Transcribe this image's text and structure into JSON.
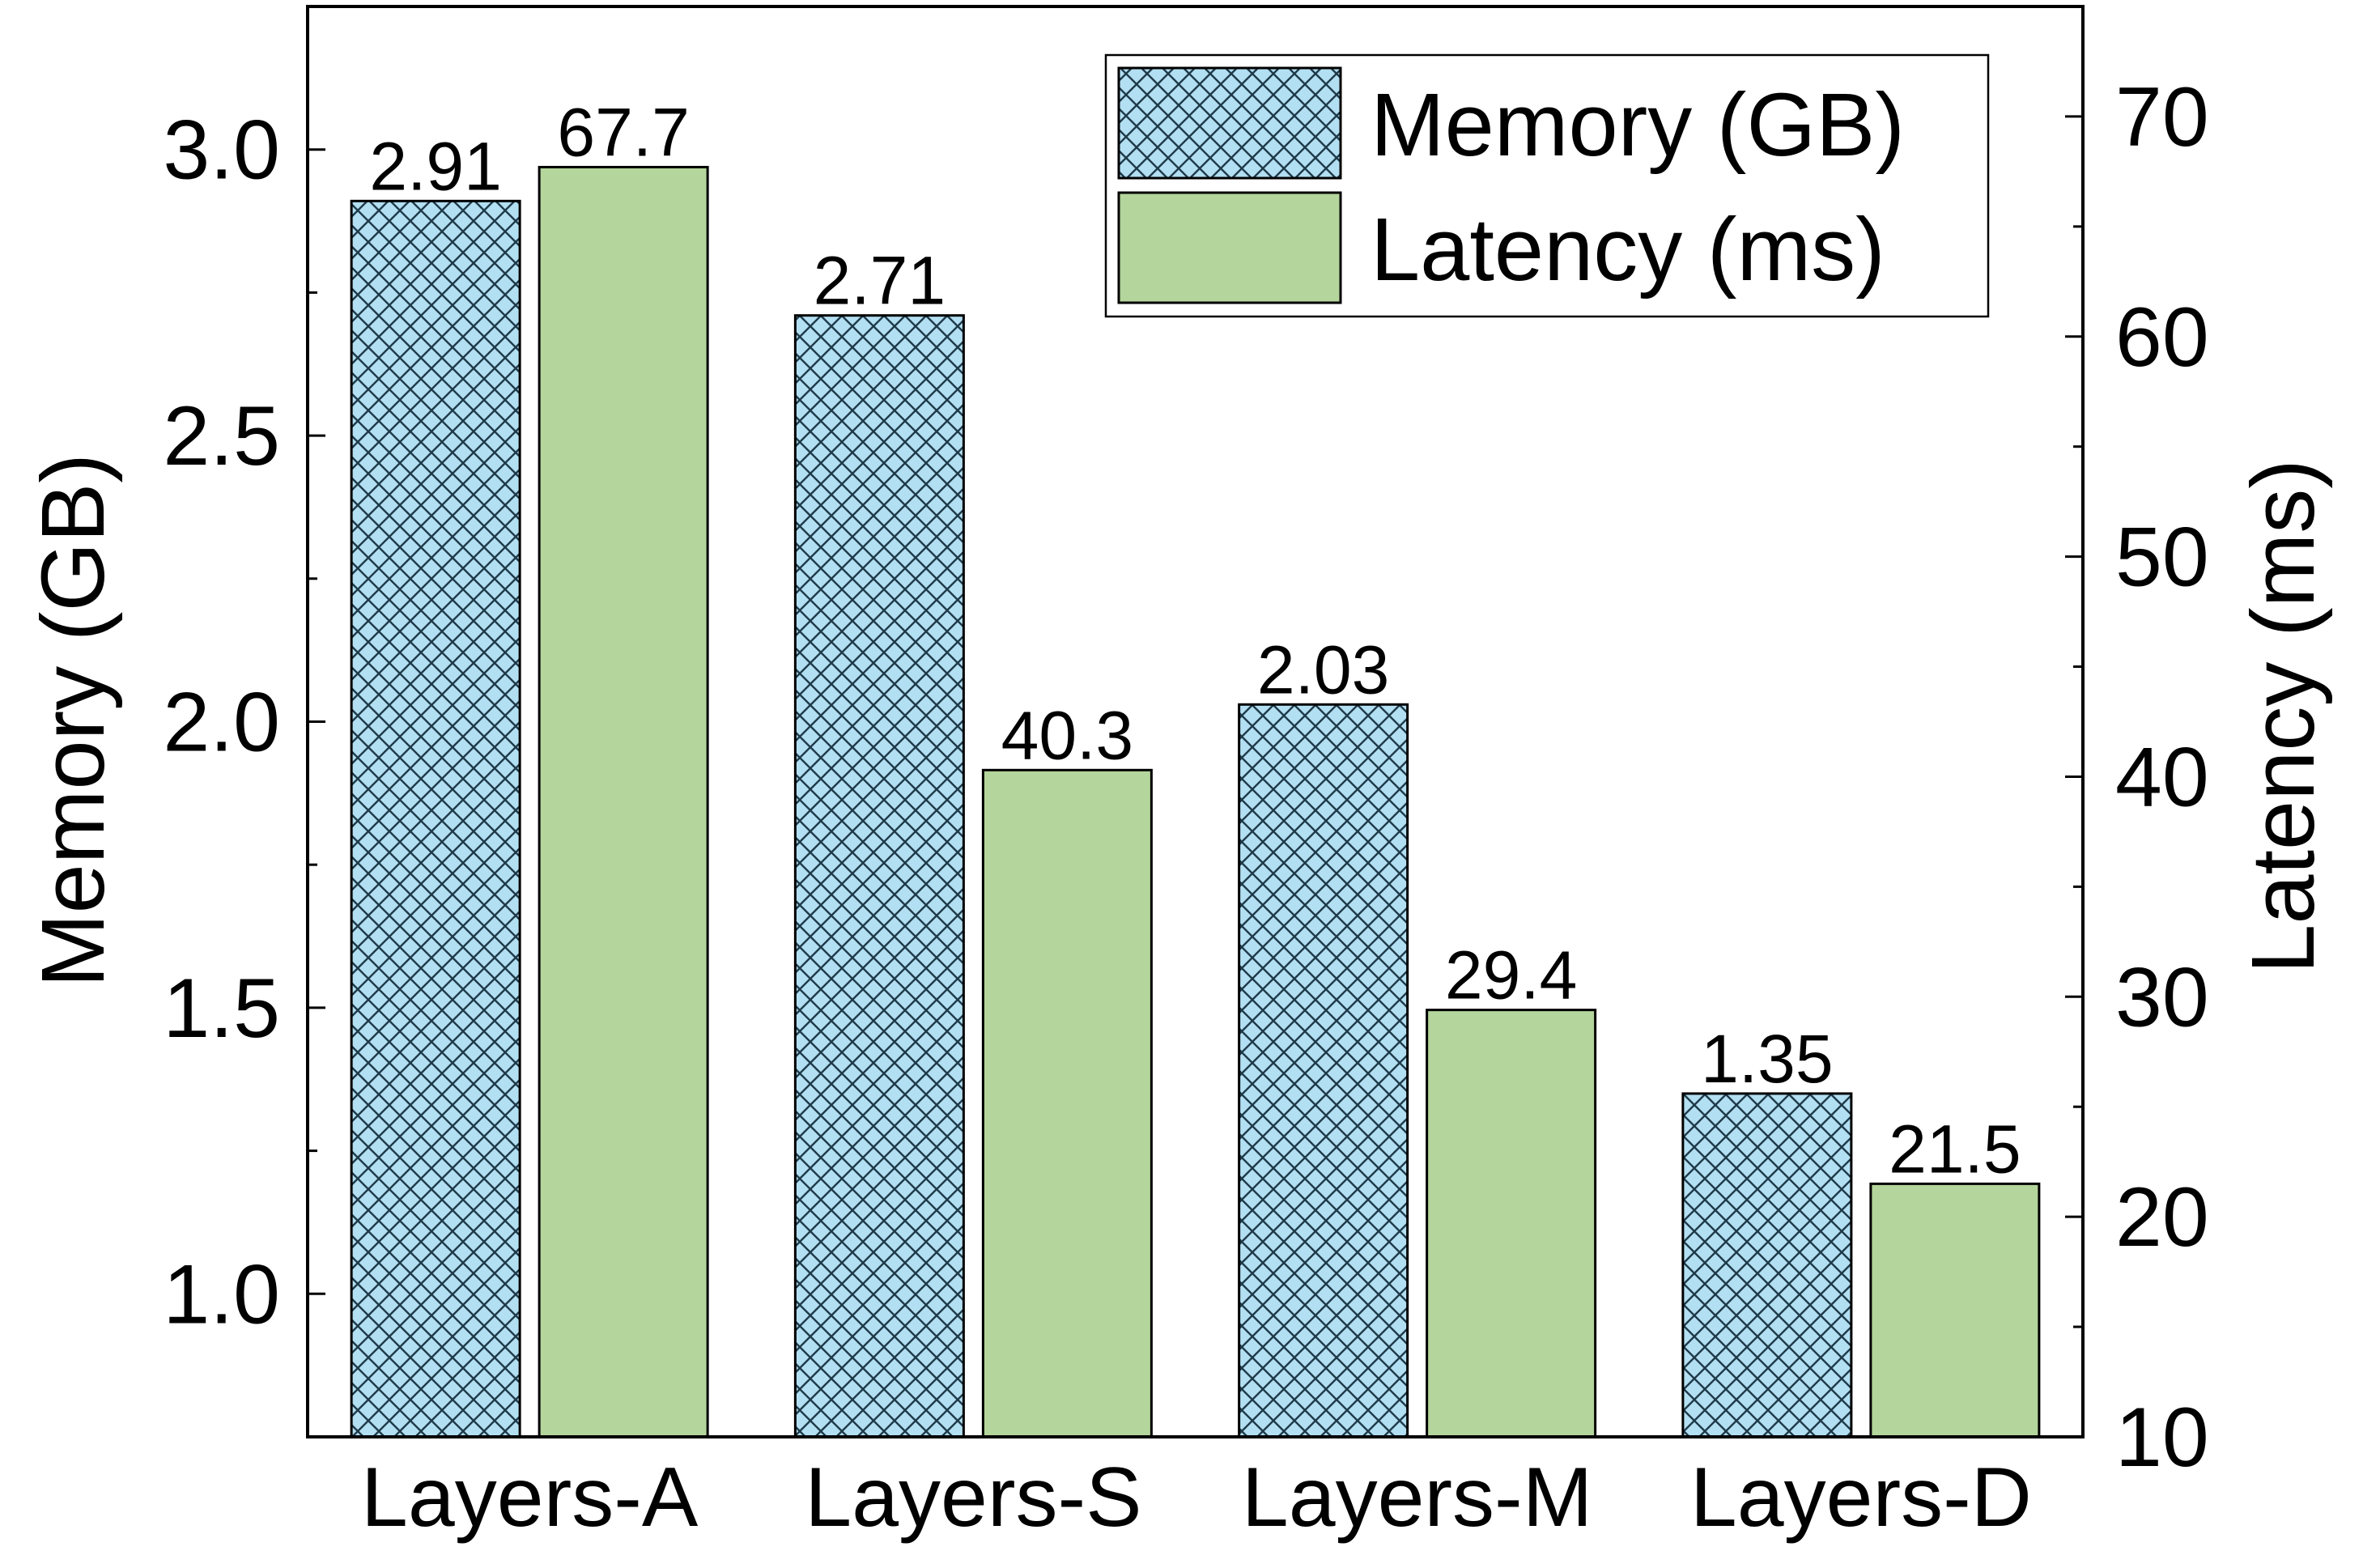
{
  "chart_data": {
    "type": "bar",
    "categories": [
      "Layers-A",
      "Layers-S",
      "Layers-M",
      "Layers-D"
    ],
    "series": [
      {
        "name": "Memory (GB)",
        "axis": "left",
        "values": [
          2.91,
          2.71,
          2.03,
          1.35
        ],
        "labels": [
          "2.91",
          "2.71",
          "2.03",
          "1.35"
        ],
        "fill": "#b3dff2",
        "pattern": "crosshatch"
      },
      {
        "name": "Latency (ms)",
        "axis": "right",
        "values": [
          67.7,
          40.3,
          29.4,
          21.5
        ],
        "labels": [
          "67.7",
          "40.3",
          "29.4",
          "21.5"
        ],
        "fill": "#b4d59b",
        "pattern": "solid"
      }
    ],
    "ylabel": "Memory (GB)",
    "y2label": "Latency (ms)",
    "ylim": [
      0.75,
      3.25
    ],
    "y2lim": [
      10,
      75
    ],
    "yticks": [
      "1.0",
      "1.5",
      "2.0",
      "2.5",
      "3.0"
    ],
    "y2ticks": [
      "10",
      "20",
      "30",
      "40",
      "50",
      "60",
      "70"
    ],
    "legend_position": "top-right",
    "grid": false
  }
}
